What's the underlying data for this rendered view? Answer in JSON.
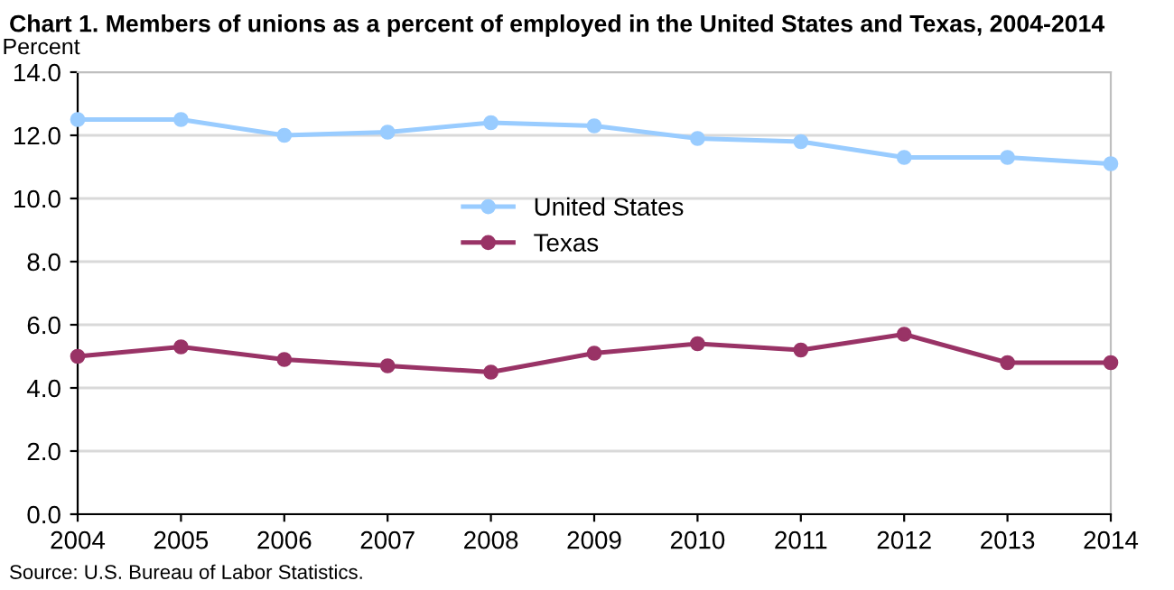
{
  "chart_data": {
    "type": "line",
    "title": "Chart 1. Members of unions as a percent of employed in the United States and Texas, 2004-2014",
    "ylabel": "Percent",
    "x": [
      2004,
      2005,
      2006,
      2007,
      2008,
      2009,
      2010,
      2011,
      2012,
      2013,
      2014
    ],
    "series": [
      {
        "name": "United States",
        "color": "#99ccff",
        "values": [
          12.5,
          12.5,
          12.0,
          12.1,
          12.4,
          12.3,
          11.9,
          11.8,
          11.3,
          11.3,
          11.1
        ]
      },
      {
        "name": "Texas",
        "color": "#993366",
        "values": [
          5.0,
          5.3,
          4.9,
          4.7,
          4.5,
          5.1,
          5.4,
          5.2,
          5.7,
          4.8,
          4.8
        ]
      }
    ],
    "xlim": [
      2004,
      2014
    ],
    "xticks": [
      2004,
      2005,
      2006,
      2007,
      2008,
      2009,
      2010,
      2011,
      2012,
      2013,
      2014
    ],
    "ylim": [
      0,
      14
    ],
    "yticks": [
      {
        "value": 0,
        "label": "0.0"
      },
      {
        "value": 2,
        "label": "2.0"
      },
      {
        "value": 4,
        "label": "4.0"
      },
      {
        "value": 6,
        "label": "6.0"
      },
      {
        "value": 8,
        "label": "8.0"
      },
      {
        "value": 10,
        "label": "10.0"
      },
      {
        "value": 12,
        "label": "12.0"
      },
      {
        "value": 14,
        "label": "14.0"
      }
    ],
    "grid": "y",
    "legend": "center",
    "marker": "circle",
    "line_style": "solid",
    "annotations": [
      "Source: U.S. Bureau of Labor Statistics."
    ]
  }
}
